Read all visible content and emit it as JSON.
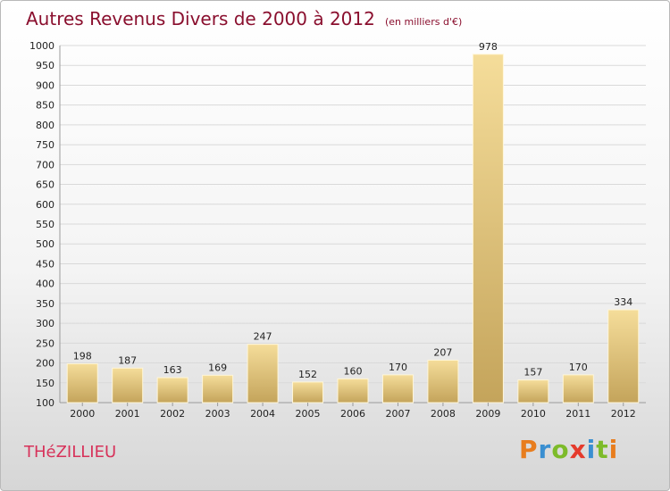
{
  "title": "Autres Revenus Divers de 2000 à 2012",
  "unit_note": "(en milliers d'€)",
  "commune": "THéZILLIEU",
  "brand": {
    "text": "Proxiti",
    "letter_colors": [
      "#e87d1e",
      "#3a8fd1",
      "#7dbb2a",
      "#e53b2c",
      "#3a8fd1",
      "#7dbb2a",
      "#e87d1e"
    ]
  },
  "colors": {
    "bar_light": "#f5dd9a",
    "bar_dark": "#c4a45b",
    "grid": "#d9d9d9",
    "axis": "#9a9a9a"
  },
  "chart_data": {
    "type": "bar",
    "categories": [
      "2000",
      "2001",
      "2002",
      "2003",
      "2004",
      "2005",
      "2006",
      "2007",
      "2008",
      "2009",
      "2010",
      "2011",
      "2012"
    ],
    "values": [
      198,
      187,
      163,
      169,
      247,
      152,
      160,
      170,
      207,
      978,
      157,
      170,
      334
    ],
    "ylim": [
      100,
      1000
    ],
    "yticks": [
      100,
      150,
      200,
      250,
      300,
      350,
      400,
      450,
      500,
      550,
      600,
      650,
      700,
      750,
      800,
      850,
      900,
      950,
      1000
    ],
    "grid": true,
    "legend": "none"
  }
}
